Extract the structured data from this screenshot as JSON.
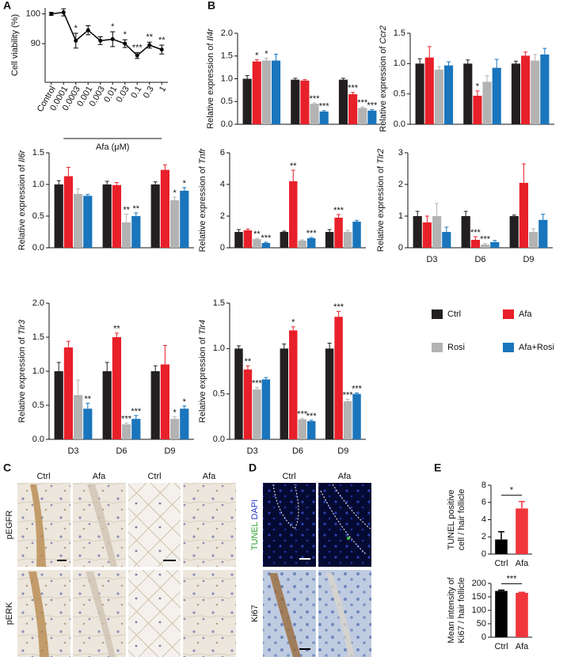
{
  "panel_labels": [
    "A",
    "B",
    "C",
    "D",
    "E"
  ],
  "legend": [
    {
      "name": "Ctrl",
      "color": "#231f20"
    },
    {
      "name": "Afa",
      "color": "#e8202a"
    },
    {
      "name": "Rosi",
      "color": "#b3b3b3"
    },
    {
      "name": "Afa+Rosi",
      "color": "#1a75bc"
    }
  ],
  "panel_c": {
    "columns": [
      "Ctrl",
      "Afa",
      "Ctrl",
      "Afa"
    ],
    "rows": [
      "pEGFR",
      "pERK"
    ]
  },
  "panel_d": {
    "columns": [
      "Ctrl",
      "Afa"
    ],
    "stain_green": "TUNEL",
    "stain_blue": "DAPI",
    "row2": "Ki67"
  },
  "chart_data": [
    {
      "type": "line",
      "ylabel": "Cell viability (%)",
      "xlabel": "Afa (μM)",
      "color": "#000000",
      "categories": [
        "Control",
        "0.0001",
        "0.0003",
        "0.001",
        "0.003",
        "0.01",
        "0.03",
        "0.1",
        "0.3",
        "1"
      ],
      "values": [
        100,
        100.5,
        91,
        94.5,
        91,
        91.5,
        90,
        86,
        89.5,
        88
      ],
      "errors": [
        0.5,
        1.2,
        2.5,
        1.5,
        1.3,
        2.5,
        1.3,
        1,
        1,
        1.5
      ],
      "significance": [
        null,
        null,
        "*",
        null,
        null,
        "*",
        "*",
        "***",
        "**",
        "**"
      ],
      "ylim": [
        77,
        102
      ],
      "yticks": [
        90,
        100
      ]
    },
    {
      "type": "grouped_bar",
      "ylabel": "Relative expression of ",
      "gene": "Il4r",
      "categories": [
        null,
        null,
        null
      ],
      "series": [
        {
          "color": "#231f20",
          "values": [
            1.0,
            0.98,
            0.98
          ],
          "errors": [
            0.07,
            0.03,
            0.03
          ],
          "significance": [
            null,
            null,
            null
          ]
        },
        {
          "color": "#e8202a",
          "values": [
            1.38,
            0.96,
            0.66
          ],
          "errors": [
            0.04,
            0.02,
            0.04
          ],
          "significance": [
            "*",
            null,
            "***"
          ]
        },
        {
          "color": "#b3b3b3",
          "values": [
            1.4,
            0.45,
            0.36
          ],
          "errors": [
            0.05,
            0.02,
            0.02
          ],
          "significance": [
            "*",
            "***",
            "***"
          ]
        },
        {
          "color": "#1a75bc",
          "values": [
            1.4,
            0.28,
            0.3
          ],
          "errors": [
            0.14,
            0.02,
            0.02
          ],
          "significance": [
            null,
            "***",
            "***"
          ]
        }
      ],
      "ylim": [
        0,
        2
      ],
      "yticks": [
        {
          "value": 0,
          "label": "0.0"
        },
        {
          "value": 0.5,
          "label": "0.5"
        },
        {
          "value": 1,
          "label": "1.0"
        },
        {
          "value": 1.5,
          "label": "1.5"
        },
        {
          "value": 2,
          "label": "2.0"
        }
      ]
    },
    {
      "type": "grouped_bar",
      "ylabel": "Relative expression of ",
      "gene": "Ccr2",
      "categories": [
        null,
        null,
        null
      ],
      "series": [
        {
          "color": "#231f20",
          "values": [
            1.0,
            1.0,
            1.0
          ],
          "errors": [
            0.08,
            0.06,
            0.04
          ],
          "significance": [
            null,
            null,
            null
          ]
        },
        {
          "color": "#e8202a",
          "values": [
            1.1,
            0.47,
            1.13
          ],
          "errors": [
            0.18,
            0.08,
            0.06
          ],
          "significance": [
            null,
            "*",
            null
          ]
        },
        {
          "color": "#b3b3b3",
          "values": [
            0.9,
            0.7,
            1.05
          ],
          "errors": [
            0.05,
            0.1,
            0.1
          ],
          "significance": [
            null,
            null,
            null
          ]
        },
        {
          "color": "#1a75bc",
          "values": [
            0.97,
            0.93,
            1.15
          ],
          "errors": [
            0.06,
            0.14,
            0.1
          ],
          "significance": [
            null,
            null,
            null
          ]
        }
      ],
      "ylim": [
        0,
        1.5
      ],
      "yticks": [
        {
          "value": 0,
          "label": "0.0"
        },
        {
          "value": 0.5,
          "label": "0.5"
        },
        {
          "value": 1,
          "label": "1.0"
        },
        {
          "value": 1.5,
          "label": "1.5"
        }
      ]
    },
    {
      "type": "grouped_bar",
      "ylabel": "Relative expression of ",
      "gene": "Il6r",
      "categories": [
        null,
        null,
        null
      ],
      "series": [
        {
          "color": "#231f20",
          "values": [
            1.0,
            1.0,
            1.0
          ],
          "errors": [
            0.06,
            0.05,
            0.04
          ],
          "significance": [
            null,
            null,
            null
          ]
        },
        {
          "color": "#e8202a",
          "values": [
            1.13,
            0.99,
            1.23
          ],
          "errors": [
            0.14,
            0.04,
            0.08
          ],
          "significance": [
            null,
            null,
            null
          ]
        },
        {
          "color": "#b3b3b3",
          "values": [
            0.85,
            0.4,
            0.75
          ],
          "errors": [
            0.08,
            0.13,
            0.05
          ],
          "significance": [
            null,
            "**",
            "*"
          ]
        },
        {
          "color": "#1a75bc",
          "values": [
            0.82,
            0.5,
            0.9
          ],
          "errors": [
            0.02,
            0.05,
            0.05
          ],
          "significance": [
            null,
            "**",
            "*"
          ]
        }
      ],
      "ylim": [
        0,
        1.5
      ],
      "yticks": [
        {
          "value": 0,
          "label": "0.0"
        },
        {
          "value": 0.5,
          "label": "0.5"
        },
        {
          "value": 1,
          "label": "1.0"
        },
        {
          "value": 1.5,
          "label": "1.5"
        }
      ]
    },
    {
      "type": "grouped_bar",
      "ylabel": "Relative expression of ",
      "gene": "Tnfr",
      "categories": [
        null,
        null,
        null
      ],
      "series": [
        {
          "color": "#231f20",
          "values": [
            1.0,
            1.0,
            1.0
          ],
          "errors": [
            0.15,
            0.05,
            0.15
          ],
          "significance": [
            null,
            null,
            null
          ]
        },
        {
          "color": "#e8202a",
          "values": [
            1.1,
            4.2,
            1.9
          ],
          "errors": [
            0.08,
            0.7,
            0.2
          ],
          "significance": [
            null,
            "**",
            "***"
          ]
        },
        {
          "color": "#b3b3b3",
          "values": [
            0.55,
            0.45,
            1.0
          ],
          "errors": [
            0.05,
            0.05,
            0.1
          ],
          "significance": [
            "**",
            null,
            null
          ]
        },
        {
          "color": "#1a75bc",
          "values": [
            0.3,
            0.6,
            1.65
          ],
          "errors": [
            0.05,
            0.05,
            0.08
          ],
          "significance": [
            "***",
            "***",
            null
          ]
        }
      ],
      "ylim": [
        0,
        6
      ],
      "yticks": [
        0,
        2,
        4,
        6
      ]
    },
    {
      "type": "grouped_bar",
      "ylabel": "Relative expression of ",
      "gene": "Tlr2",
      "categories": [
        "D3",
        "D6",
        "D9"
      ],
      "series": [
        {
          "color": "#231f20",
          "values": [
            1.0,
            1.0,
            1.0
          ],
          "errors": [
            0.15,
            0.15,
            0.03
          ],
          "significance": [
            null,
            null,
            null
          ]
        },
        {
          "color": "#e8202a",
          "values": [
            0.8,
            0.25,
            2.05
          ],
          "errors": [
            0.2,
            0.1,
            0.6
          ],
          "significance": [
            null,
            "***",
            null
          ]
        },
        {
          "color": "#b3b3b3",
          "values": [
            1.0,
            0.1,
            0.5
          ],
          "errors": [
            0.4,
            0.03,
            0.1
          ],
          "significance": [
            null,
            "***",
            null
          ]
        },
        {
          "color": "#1a75bc",
          "values": [
            0.5,
            0.18,
            0.88
          ],
          "errors": [
            0.15,
            0.05,
            0.18
          ],
          "significance": [
            null,
            null,
            null
          ]
        }
      ],
      "ylim": [
        0,
        3
      ],
      "yticks": [
        0,
        1,
        2,
        3
      ]
    },
    {
      "type": "grouped_bar",
      "ylabel": "Relative expression of ",
      "gene": "Tlr3",
      "categories": [
        "D3",
        "D6",
        "D9"
      ],
      "series": [
        {
          "color": "#231f20",
          "values": [
            1.0,
            1.0,
            1.0
          ],
          "errors": [
            0.13,
            0.13,
            0.08
          ],
          "significance": [
            null,
            null,
            null
          ]
        },
        {
          "color": "#e8202a",
          "values": [
            1.35,
            1.5,
            1.1
          ],
          "errors": [
            0.09,
            0.06,
            0.28
          ],
          "significance": [
            null,
            "**",
            null
          ]
        },
        {
          "color": "#b3b3b3",
          "values": [
            0.65,
            0.22,
            0.3
          ],
          "errors": [
            0.22,
            0.02,
            0.03
          ],
          "significance": [
            null,
            "***",
            "*"
          ]
        },
        {
          "color": "#1a75bc",
          "values": [
            0.45,
            0.3,
            0.45
          ],
          "errors": [
            0.08,
            0.05,
            0.04
          ],
          "significance": [
            "**",
            "***",
            "*"
          ]
        }
      ],
      "ylim": [
        0,
        2
      ],
      "yticks": [
        {
          "value": 0,
          "label": "0.0"
        },
        {
          "value": 0.5,
          "label": "0.5"
        },
        {
          "value": 1,
          "label": "1.0"
        },
        {
          "value": 1.5,
          "label": "1.5"
        },
        {
          "value": 2,
          "label": "2.0"
        }
      ]
    },
    {
      "type": "grouped_bar",
      "ylabel": "Relative expression of ",
      "gene": "Tlr4",
      "categories": [
        "D3",
        "D6",
        "D9"
      ],
      "series": [
        {
          "color": "#231f20",
          "values": [
            1.0,
            1.0,
            1.0
          ],
          "errors": [
            0.03,
            0.05,
            0.06
          ],
          "significance": [
            null,
            null,
            null
          ]
        },
        {
          "color": "#e8202a",
          "values": [
            0.77,
            1.2,
            1.35
          ],
          "errors": [
            0.04,
            0.04,
            0.06
          ],
          "significance": [
            "**",
            "*",
            "***"
          ]
        },
        {
          "color": "#b3b3b3",
          "values": [
            0.55,
            0.22,
            0.42
          ],
          "errors": [
            0.02,
            0.01,
            0.02
          ],
          "significance": [
            "***",
            "***",
            "***"
          ]
        },
        {
          "color": "#1a75bc",
          "values": [
            0.66,
            0.2,
            0.5
          ],
          "errors": [
            0.02,
            0.01,
            0.01
          ],
          "significance": [
            null,
            "***",
            "***"
          ]
        }
      ],
      "ylim": [
        0,
        1.5
      ],
      "yticks": [
        {
          "value": 0,
          "label": "0.0"
        },
        {
          "value": 0.5,
          "label": "0.5"
        },
        {
          "value": 1,
          "label": "1.0"
        },
        {
          "value": 1.5,
          "label": "1.5"
        }
      ]
    },
    {
      "type": "bar",
      "ylabel": [
        "TUNEL positive",
        "cell / hair follicle"
      ],
      "categories": [
        "Ctrl",
        "Afa"
      ],
      "values": [
        1.7,
        5.3
      ],
      "errors": [
        0.9,
        0.8
      ],
      "colors": [
        "#000000",
        "#f0363c"
      ],
      "significance": "*",
      "ylim": [
        0,
        8
      ],
      "yticks": [
        0,
        2,
        4,
        6,
        8
      ]
    },
    {
      "type": "bar",
      "ylabel": [
        "Mean intensity of",
        "Ki67 / hair follicle"
      ],
      "categories": [
        "Ctrl",
        "Afa"
      ],
      "values": [
        172,
        165
      ],
      "errors": [
        3,
        2
      ],
      "colors": [
        "#000000",
        "#f0363c"
      ],
      "significance": "***",
      "ylim": [
        0,
        200
      ],
      "yticks": [
        0,
        50,
        100,
        150,
        200
      ]
    }
  ]
}
